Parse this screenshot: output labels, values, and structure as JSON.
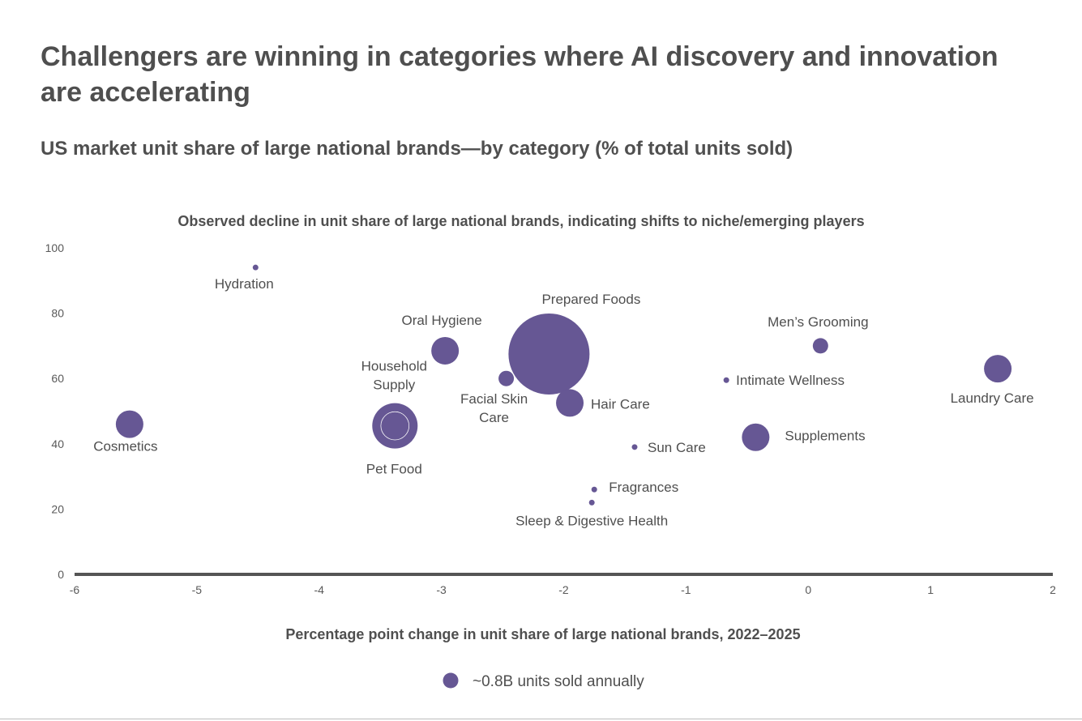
{
  "page": {
    "title": "Challengers are winning in categories where AI discovery and innovation are accelerating",
    "subtitle": "US market unit share of large national brands—by category (% of total units sold)"
  },
  "colors": {
    "bubble": "#665794",
    "text": "#4f4f4f",
    "axis": "#555555",
    "tick": "#595959"
  },
  "chart_data": {
    "type": "scatter",
    "title": "Observed decline in unit share of large national brands, indicating shifts to niche/emerging players",
    "xlabel": "Percentage point change in unit share of large national brands, 2022–2025",
    "ylabel": "",
    "xlim": [
      -6,
      2
    ],
    "ylim": [
      0,
      100
    ],
    "xticks": [
      -6,
      -5,
      -4,
      -3,
      -2,
      -1,
      0,
      1,
      2
    ],
    "yticks": [
      0,
      20,
      40,
      60,
      80,
      100
    ],
    "grid": false,
    "legend": {
      "label": "~0.8B units sold annually",
      "position": "bottom-center"
    },
    "points": [
      {
        "label": "Hydration",
        "x": -4.52,
        "y": 94,
        "size": "tiny",
        "label_pos": "below-left"
      },
      {
        "label": "Oral Hygiene",
        "x": -2.97,
        "y": 68.5,
        "size": "medium",
        "label_pos": "above"
      },
      {
        "label": "Prepared Foods",
        "x": -2.12,
        "y": 67.5,
        "size": "huge",
        "label_pos": "above-right"
      },
      {
        "label": "Men’s Grooming",
        "x": 0.1,
        "y": 70,
        "size": "small",
        "label_pos": "above"
      },
      {
        "label": "Household Supply",
        "x": -3.38,
        "y": 45.5,
        "size": "large",
        "label_pos": "above",
        "highlighted": true
      },
      {
        "label": "Facial Skin Care",
        "x": -2.47,
        "y": 60,
        "size": "small",
        "label_pos": "below"
      },
      {
        "label": "Hair Care",
        "x": -1.95,
        "y": 52.5,
        "size": "medium",
        "label_pos": "right"
      },
      {
        "label": "Intimate Wellness",
        "x": -0.67,
        "y": 59.5,
        "size": "tiny",
        "label_pos": "right"
      },
      {
        "label": "Laundry Care",
        "x": 1.55,
        "y": 63,
        "size": "medium",
        "label_pos": "below"
      },
      {
        "label": "Cosmetics",
        "x": -5.55,
        "y": 46,
        "size": "medium",
        "label_pos": "below"
      },
      {
        "label": "Pet Food",
        "x": -3.38,
        "y": 45.5,
        "size": "medium",
        "label_pos": "below"
      },
      {
        "label": "Sun Care",
        "x": -1.42,
        "y": 39,
        "size": "tiny",
        "label_pos": "right"
      },
      {
        "label": "Supplements",
        "x": -0.43,
        "y": 42,
        "size": "medium",
        "label_pos": "right"
      },
      {
        "label": "Fragrances",
        "x": -1.75,
        "y": 26,
        "size": "tiny",
        "label_pos": "right"
      },
      {
        "label": "Sleep & Digestive Health",
        "x": -1.77,
        "y": 22,
        "size": "tiny",
        "label_pos": "below"
      }
    ]
  }
}
